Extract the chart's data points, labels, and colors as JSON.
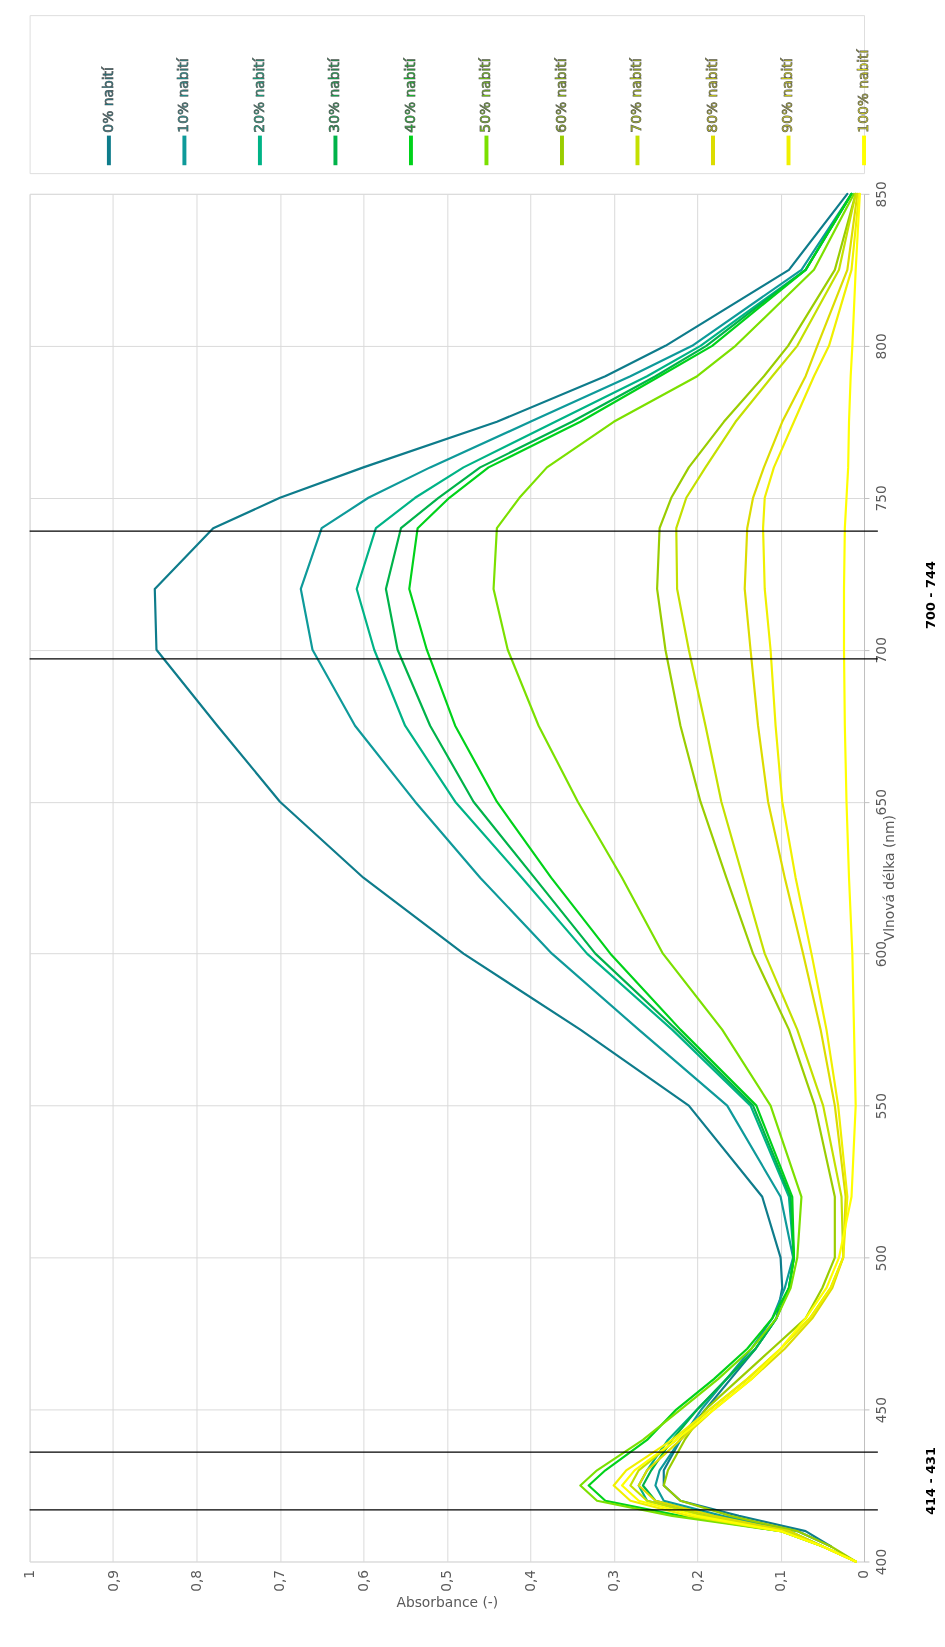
{
  "chart_data": {
    "type": "line",
    "xlabel": "Absorbance (-)",
    "ylabel": "Vlnová délka (nm)",
    "series": [
      {
        "name": "0% nabití",
        "color": "#0e7c8b",
        "x": [
          null,
          0.04,
          0.07,
          0.15,
          0.22,
          0.24,
          0.24,
          0.22,
          0.19,
          0.16,
          0.13,
          0.105,
          0.098,
          0.1,
          0.122,
          0.21,
          0.34,
          0.48,
          0.6,
          0.7,
          0.775,
          0.848,
          0.85,
          0.78,
          0.7,
          0.6,
          0.44,
          0.31,
          0.238,
          0.09,
          0.02
        ],
        "values": [
          null,
          405,
          410,
          415,
          420,
          425,
          430,
          440,
          450,
          460,
          470,
          480,
          490,
          500,
          520,
          550,
          575,
          600,
          625,
          650,
          675,
          700,
          720,
          740,
          750,
          760,
          775,
          790,
          800,
          825,
          850
        ]
      },
      {
        "name": "10% nabití",
        "color": "#0e9a9a",
        "x": [
          null,
          0.04,
          0.08,
          0.17,
          0.24,
          0.25,
          0.245,
          0.22,
          0.195,
          0.165,
          0.135,
          0.11,
          0.095,
          0.085,
          0.1,
          0.164,
          0.27,
          0.374,
          0.46,
          0.538,
          0.61,
          0.661,
          0.675,
          0.65,
          0.594,
          0.52,
          0.4,
          0.28,
          0.206,
          0.075,
          0.015
        ],
        "values": [
          null,
          405,
          410,
          415,
          420,
          425,
          430,
          440,
          450,
          460,
          470,
          480,
          490,
          500,
          520,
          550,
          575,
          600,
          625,
          650,
          675,
          700,
          720,
          740,
          750,
          760,
          775,
          790,
          800,
          825,
          850
        ]
      },
      {
        "name": "20% nabití",
        "color": "#00b386",
        "x": [
          null,
          null,
          0.09,
          0.19,
          0.26,
          0.27,
          0.26,
          0.235,
          0.2,
          0.165,
          0.13,
          0.105,
          0.09,
          0.084,
          0.09,
          0.136,
          0.23,
          0.332,
          0.41,
          0.49,
          0.55,
          0.587,
          0.608,
          0.585,
          0.538,
          0.48,
          0.37,
          0.26,
          0.196,
          0.07,
          0.015
        ],
        "values": [
          null,
          null,
          410,
          415,
          420,
          425,
          430,
          440,
          450,
          460,
          470,
          480,
          490,
          500,
          520,
          550,
          575,
          600,
          625,
          650,
          675,
          700,
          720,
          740,
          750,
          760,
          775,
          790,
          800,
          825,
          850
        ]
      },
      {
        "name": "30% nabití",
        "color": "#00b34a",
        "x": [
          null,
          0.05,
          0.09,
          0.18,
          0.25,
          0.265,
          0.255,
          0.23,
          0.2,
          0.165,
          0.13,
          0.105,
          0.09,
          0.084,
          0.088,
          0.133,
          0.225,
          0.322,
          0.395,
          0.468,
          0.52,
          0.559,
          0.573,
          0.555,
          0.51,
          0.46,
          0.35,
          0.25,
          0.189,
          0.07,
          0.015
        ],
        "values": [
          null,
          405,
          410,
          415,
          420,
          425,
          430,
          440,
          450,
          460,
          470,
          480,
          490,
          500,
          520,
          550,
          575,
          600,
          625,
          650,
          675,
          700,
          720,
          740,
          750,
          760,
          775,
          790,
          800,
          825,
          850
        ]
      },
      {
        "name": "40% nabití",
        "color": "#00d21a",
        "x": [
          null,
          0.05,
          0.1,
          0.22,
          0.31,
          0.33,
          0.31,
          0.26,
          0.225,
          0.18,
          0.14,
          0.11,
          0.09,
          0.084,
          0.086,
          0.129,
          0.22,
          0.304,
          0.375,
          0.44,
          0.49,
          0.524,
          0.545,
          0.535,
          0.497,
          0.45,
          0.34,
          0.245,
          0.182,
          0.07,
          0.015
        ],
        "values": [
          null,
          405,
          410,
          415,
          420,
          425,
          430,
          440,
          450,
          460,
          470,
          480,
          490,
          500,
          520,
          550,
          575,
          600,
          625,
          650,
          675,
          700,
          720,
          740,
          750,
          760,
          775,
          790,
          800,
          825,
          850
        ]
      },
      {
        "name": "50% nabití",
        "color": "#7be000",
        "x": [
          0.01,
          0.05,
          0.1,
          0.23,
          0.32,
          0.34,
          0.32,
          0.265,
          0.22,
          0.175,
          0.135,
          0.105,
          0.088,
          0.08,
          0.075,
          0.112,
          0.17,
          0.241,
          0.29,
          0.343,
          0.39,
          0.427,
          0.444,
          0.44,
          0.413,
          0.38,
          0.3,
          0.2,
          0.154,
          0.06,
          0.012
        ],
        "values": [
          400,
          405,
          410,
          415,
          420,
          425,
          430,
          440,
          450,
          460,
          470,
          480,
          490,
          500,
          520,
          550,
          575,
          600,
          625,
          650,
          675,
          700,
          720,
          740,
          750,
          760,
          775,
          790,
          800,
          825,
          850
        ]
      },
      {
        "name": "60% nabití",
        "color": "#9acd00",
        "x": [
          0.01,
          0.04,
          0.08,
          0.16,
          0.22,
          0.24,
          0.235,
          0.215,
          0.19,
          0.15,
          0.11,
          0.07,
          0.05,
          0.035,
          0.035,
          0.059,
          0.09,
          0.133,
          0.165,
          0.196,
          0.22,
          0.238,
          0.248,
          0.245,
          0.231,
          0.21,
          0.168,
          0.12,
          0.091,
          0.035,
          0.01
        ],
        "values": [
          400,
          405,
          410,
          415,
          420,
          425,
          430,
          440,
          450,
          460,
          470,
          480,
          490,
          500,
          520,
          550,
          575,
          600,
          625,
          650,
          675,
          700,
          720,
          740,
          750,
          760,
          775,
          790,
          800,
          825,
          850
        ]
      },
      {
        "name": "70% nabití",
        "color": "#c4e000",
        "x": [
          0.01,
          0.05,
          0.09,
          0.19,
          0.26,
          0.28,
          0.27,
          0.225,
          0.185,
          0.14,
          0.1,
          0.065,
          0.04,
          0.025,
          0.027,
          0.049,
          0.08,
          0.119,
          0.145,
          0.171,
          0.19,
          0.21,
          0.224,
          0.225,
          0.213,
          0.19,
          0.154,
          0.11,
          0.08,
          0.03,
          0.01
        ],
        "values": [
          400,
          405,
          410,
          415,
          420,
          425,
          430,
          440,
          450,
          460,
          470,
          480,
          490,
          500,
          520,
          550,
          575,
          600,
          625,
          650,
          675,
          700,
          720,
          740,
          750,
          760,
          775,
          790,
          800,
          825,
          850
        ]
      },
      {
        "name": "80% nabití",
        "color": "#dcdc00",
        "x": [
          0.01,
          0.05,
          0.09,
          0.18,
          0.25,
          0.27,
          0.26,
          0.22,
          0.18,
          0.135,
          0.095,
          0.062,
          0.038,
          0.025,
          0.022,
          0.035,
          0.052,
          0.073,
          0.095,
          0.115,
          0.127,
          0.136,
          0.143,
          0.14,
          0.133,
          0.12,
          0.098,
          0.07,
          0.056,
          0.02,
          0.008
        ],
        "values": [
          400,
          405,
          410,
          415,
          420,
          425,
          430,
          440,
          450,
          460,
          470,
          480,
          490,
          500,
          520,
          550,
          575,
          600,
          625,
          650,
          675,
          700,
          720,
          740,
          750,
          760,
          775,
          790,
          800,
          825,
          850
        ]
      },
      {
        "name": "90% nabití",
        "color": "#f0f000",
        "x": [
          0.01,
          0.05,
          0.1,
          0.21,
          0.28,
          0.3,
          0.285,
          0.23,
          0.185,
          0.14,
          0.1,
          0.065,
          0.04,
          0.025,
          0.02,
          0.031,
          0.045,
          0.063,
          0.082,
          0.098,
          0.106,
          0.112,
          0.119,
          0.121,
          0.119,
          0.108,
          0.084,
          0.06,
          0.042,
          0.015,
          0.006
        ],
        "values": [
          400,
          405,
          410,
          415,
          420,
          425,
          430,
          440,
          450,
          460,
          470,
          480,
          490,
          500,
          520,
          550,
          575,
          600,
          625,
          650,
          675,
          700,
          720,
          740,
          750,
          760,
          775,
          790,
          800,
          825,
          850
        ]
      },
      {
        "name": "100% nabití",
        "color": "#ffff00",
        "x": [
          0.01,
          0.05,
          0.1,
          0.2,
          0.27,
          0.29,
          0.275,
          0.225,
          0.18,
          0.135,
          0.1,
          0.07,
          0.045,
          0.03,
          0.015,
          0.01,
          0.012,
          0.014,
          0.018,
          0.021,
          0.023,
          0.024,
          0.024,
          0.023,
          0.021,
          0.019,
          0.018,
          0.016,
          0.014,
          0.01,
          0.005
        ],
        "values": [
          400,
          405,
          410,
          415,
          420,
          425,
          430,
          440,
          450,
          460,
          470,
          480,
          490,
          500,
          520,
          550,
          575,
          600,
          625,
          650,
          675,
          700,
          720,
          740,
          750,
          760,
          775,
          790,
          800,
          825,
          850
        ]
      }
    ],
    "ylim": [
      400,
      850
    ],
    "yticks": [
      400,
      450,
      500,
      550,
      600,
      650,
      700,
      750,
      800,
      850
    ],
    "xlim": [
      1,
      0
    ],
    "xticks": [
      {
        "value": 0,
        "label": "0"
      },
      {
        "value": 0.1,
        "label": "0,1"
      },
      {
        "value": 0.2,
        "label": "0,2"
      },
      {
        "value": 0.3,
        "label": "0,3"
      },
      {
        "value": 0.4,
        "label": "0,4"
      },
      {
        "value": 0.5,
        "label": "0,5"
      },
      {
        "value": 0.6,
        "label": "0,6"
      },
      {
        "value": 0.7,
        "label": "0,7"
      },
      {
        "value": 0.8,
        "label": "0,8"
      },
      {
        "value": 0.9,
        "label": "0,9"
      },
      {
        "value": 1,
        "label": "1"
      }
    ],
    "grid": true,
    "legend": "top",
    "ref_lines": [
      {
        "axis": "y",
        "value": 417,
        "label": null,
        "color": "#000000"
      },
      {
        "axis": "y",
        "value": 436,
        "label": null,
        "color": "#000000"
      },
      {
        "axis": "y",
        "value": 697,
        "label": null,
        "color": "#000000"
      },
      {
        "axis": "y",
        "value": 739,
        "label": null,
        "color": "#000000"
      }
    ],
    "annotations": [
      "414 - 431",
      "700 - 744"
    ]
  }
}
